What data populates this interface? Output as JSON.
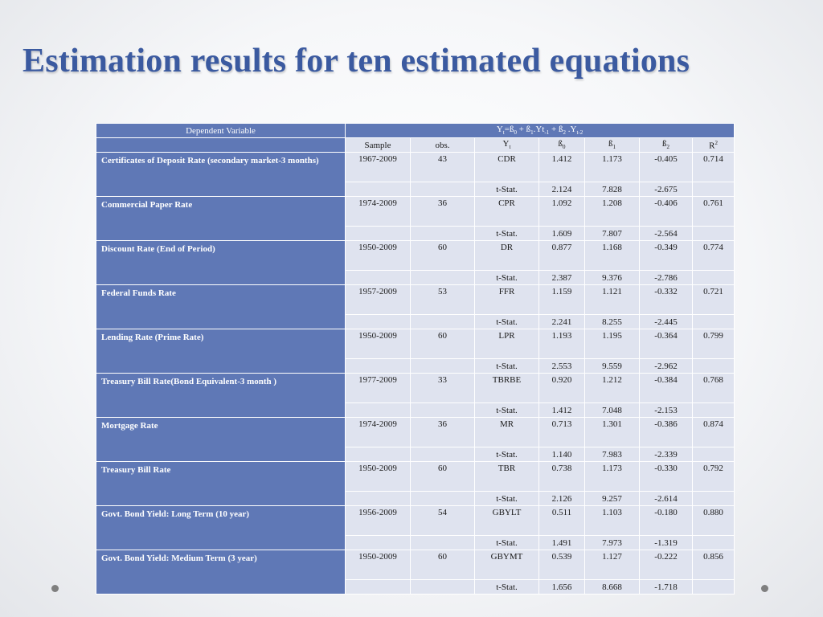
{
  "title": "Estimation results for ten estimated equations",
  "table": {
    "dependent_variable_label": "Dependent Variable",
    "equation": {
      "Y": "Y",
      "t": "t",
      "eq": "=ß",
      "b0": "0",
      "plus1": " + ß",
      "b1": "1",
      "yt": ".Yt",
      "tm1": "-1",
      "plus2": " + ß",
      "b2": "2",
      "y2": " .Y",
      "tm2": "t-2"
    },
    "columns": {
      "sample": "Sample",
      "obs": "obs.",
      "yt_base": "Y",
      "yt_sub": "t",
      "b0_base": "ß",
      "b0_sub": "0",
      "b1_base": "ß",
      "b1_sub": "1",
      "b2_base": "ß",
      "b2_sub": "2",
      "r2_base": "R",
      "r2_sup": "2"
    },
    "rows": [
      {
        "variable": "Certificates of Deposit Rate (secondary market-3 months)",
        "sample": "1967-2009",
        "obs": "43",
        "yt": "CDR",
        "b0": "1.412",
        "b1": "1.173",
        "b2": "-0.405",
        "r2": "0.714",
        "tstat_label": "t-Stat.",
        "t_b0": "2.124",
        "t_b1": "7.828",
        "t_b2": "-2.675"
      },
      {
        "variable": "Commercial Paper Rate",
        "sample": "1974-2009",
        "obs": "36",
        "yt": "CPR",
        "b0": "1.092",
        "b1": "1.208",
        "b2": "-0.406",
        "r2": "0.761",
        "tstat_label": "t-Stat.",
        "t_b0": "1.609",
        "t_b1": "7.807",
        "t_b2": "-2.564"
      },
      {
        "variable": "Discount Rate (End of Period)",
        "sample": "1950-2009",
        "obs": "60",
        "yt": "DR",
        "b0": "0.877",
        "b1": "1.168",
        "b2": "-0.349",
        "r2": "0.774",
        "tstat_label": "t-Stat.",
        "t_b0": "2.387",
        "t_b1": "9.376",
        "t_b2": "-2.786"
      },
      {
        "variable": "Federal Funds Rate",
        "sample": "1957-2009",
        "obs": "53",
        "yt": "FFR",
        "b0": "1.159",
        "b1": "1.121",
        "b2": "-0.332",
        "r2": "0.721",
        "tstat_label": "t-Stat.",
        "t_b0": "2.241",
        "t_b1": "8.255",
        "t_b2": "-2.445"
      },
      {
        "variable": "Lending Rate (Prime Rate)",
        "sample": "1950-2009",
        "obs": "60",
        "yt": "LPR",
        "b0": "1.193",
        "b1": "1.195",
        "b2": "-0.364",
        "r2": "0.799",
        "tstat_label": "t-Stat.",
        "t_b0": "2.553",
        "t_b1": "9.559",
        "t_b2": "-2.962"
      },
      {
        "variable": "Treasury Bill Rate(Bond Equivalent-3 month )",
        "sample": "1977-2009",
        "obs": "33",
        "yt": "TBRBE",
        "b0": "0.920",
        "b1": "1.212",
        "b2": "-0.384",
        "r2": "0.768",
        "tstat_label": "t-Stat.",
        "t_b0": "1.412",
        "t_b1": "7.048",
        "t_b2": "-2.153"
      },
      {
        "variable": "Mortgage Rate",
        "sample": "1974-2009",
        "obs": "36",
        "yt": "MR",
        "b0": "0.713",
        "b1": "1.301",
        "b2": "-0.386",
        "r2": "0.874",
        "tstat_label": "t-Stat.",
        "t_b0": "1.140",
        "t_b1": "7.983",
        "t_b2": "-2.339"
      },
      {
        "variable": "Treasury Bill Rate",
        "sample": "1950-2009",
        "obs": "60",
        "yt": "TBR",
        "b0": "0.738",
        "b1": "1.173",
        "b2": "-0.330",
        "r2": "0.792",
        "tstat_label": "t-Stat.",
        "t_b0": "2.126",
        "t_b1": "9.257",
        "t_b2": "-2.614"
      },
      {
        "variable": "Govt. Bond Yield: Long Term (10 year)",
        "sample": "1956-2009",
        "obs": "54",
        "yt": "GBYLT",
        "b0": "0.511",
        "b1": "1.103",
        "b2": "-0.180",
        "r2": "0.880",
        "tstat_label": "t-Stat.",
        "t_b0": "1.491",
        "t_b1": "7.973",
        "t_b2": "-1.319"
      },
      {
        "variable": "Govt. Bond Yield: Medium Term (3 year)",
        "sample": "1950-2009",
        "obs": "60",
        "yt": "GBYMT",
        "b0": "0.539",
        "b1": "1.127",
        "b2": "-0.222",
        "r2": "0.856",
        "tstat_label": "t-Stat.",
        "t_b0": "1.656",
        "t_b1": "8.668",
        "t_b2": "-1.718"
      }
    ]
  },
  "colors": {
    "title": "#3b5aa0",
    "header_fill": "#5f78b6",
    "cell_fill": "#dfe3ef",
    "dot": "#7f7f7f"
  }
}
